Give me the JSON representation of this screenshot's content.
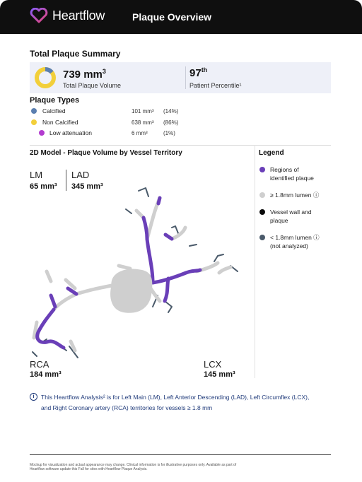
{
  "header": {
    "brand": "Heartflow",
    "title": "Plaque Overview"
  },
  "summary": {
    "title": "Total Plaque Summary",
    "volume_value": "739 mm",
    "volume_unit_sup": "3",
    "volume_label": "Total Plaque Volume",
    "percentile_value": "97",
    "percentile_sup": "th",
    "percentile_label": "Patient Percentile¹"
  },
  "plaque_types": {
    "title": "Plaque Types",
    "items": [
      {
        "name": "Calcified",
        "value": "101 mm³",
        "pct": "(14%)",
        "color": "#5b7fb0"
      },
      {
        "name": "Non Calcified",
        "value": "638 mm³",
        "pct": "(86%)",
        "color": "#f2cf3a"
      },
      {
        "name": "Low attenuation",
        "value": "6 mm³",
        "pct": "(1%)",
        "color": "#b23ccf"
      }
    ]
  },
  "model": {
    "title": "2D Model - Plaque Volume by Vessel Territory",
    "lm_label": "LM",
    "lm_value": "65 mm³",
    "lad_label": "LAD",
    "lad_value": "345 mm³",
    "rca_label": "RCA",
    "rca_value": "184 mm³",
    "lcx_label": "LCX",
    "lcx_value": "145 mm³"
  },
  "legend": {
    "title": "Legend",
    "items": [
      {
        "line1": "Regions of",
        "line2": "identified plaque",
        "color": "#6a3fb8"
      },
      {
        "line1": "≥ 1.8mm lumen ⓘ",
        "line2": "",
        "color": "#cfcfcf"
      },
      {
        "line1": "Vessel wall and",
        "line2": "plaque",
        "color": "#0a0a0a"
      },
      {
        "line1": "< 1.8mm lumen ⓘ",
        "line2": "(not analyzed)",
        "color": "#4a5a6a"
      }
    ]
  },
  "info": {
    "text": "This Heartflow Analysis² is for Left Main (LM), Left Anterior Descending (LAD), Left Circumflex (LCX), and Right Coronary artery (RCA) territories for vessels ≥ 1.8 mm"
  },
  "footnote": "Mockup for visualization and actual appearance may change. Clinical information is for illustrative purposes only. Available as part of Heartflow software update this Fall for sites with Heartflow Plaque Analysis.",
  "colors": {
    "purple": "#6a3fb8",
    "gray": "#cfcfcf",
    "dark_branch": "#4a5a6a",
    "yellow": "#f2cf3a",
    "blue": "#5b7fb0"
  }
}
